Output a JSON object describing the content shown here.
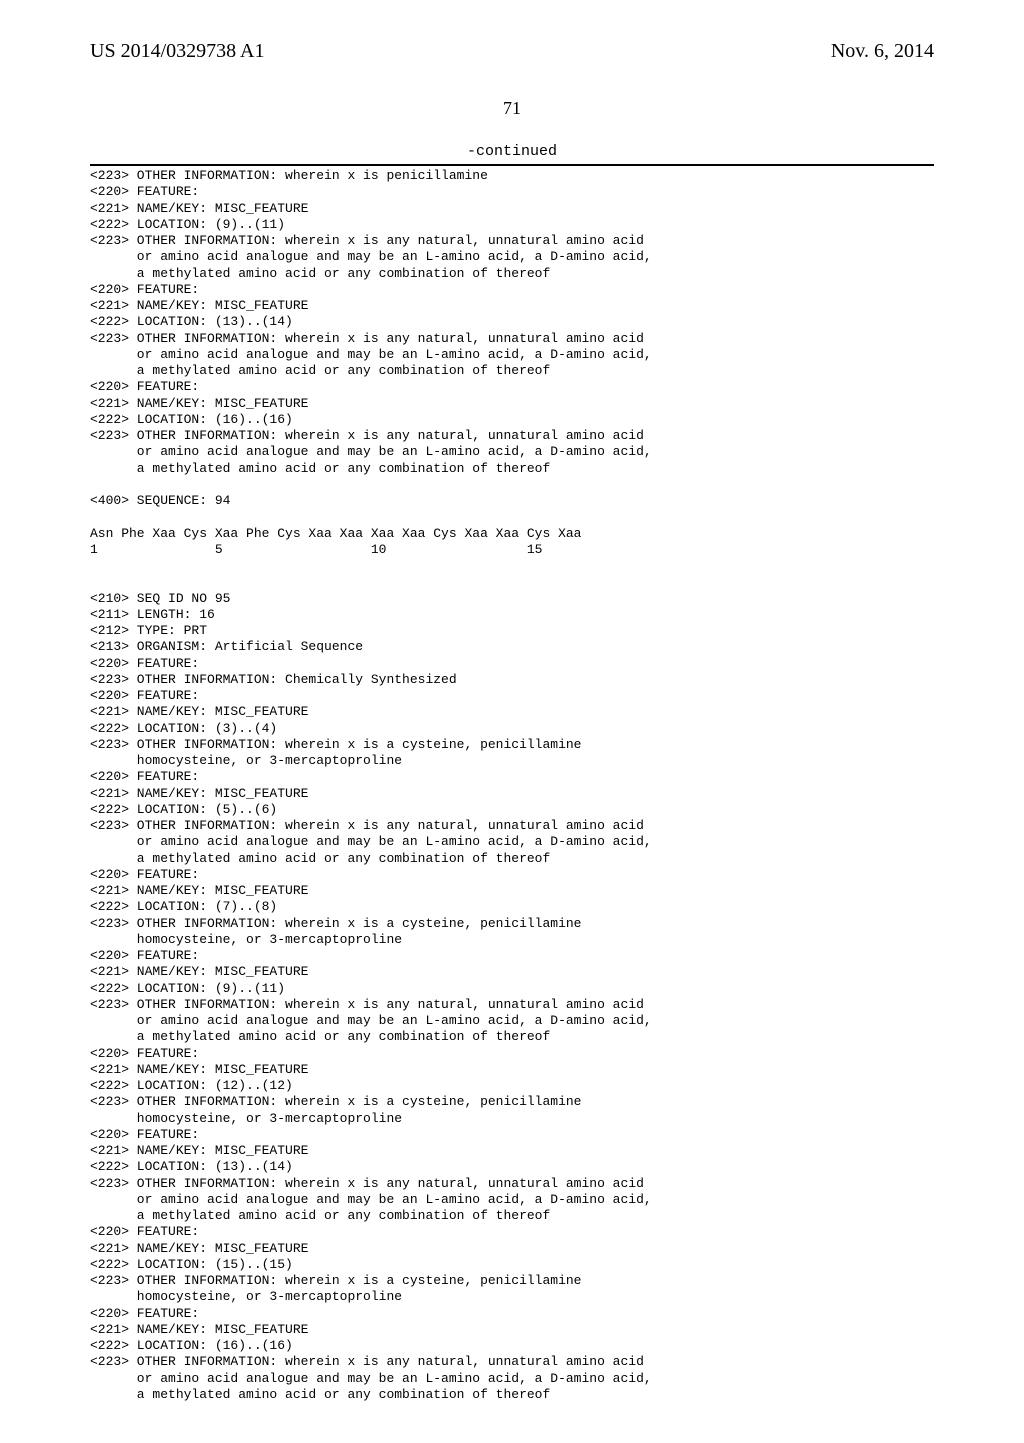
{
  "header": {
    "pub_number": "US 2014/0329738 A1",
    "pub_date": "Nov. 6, 2014",
    "page_number": "71",
    "continued_label": "-continued"
  },
  "listing": "<223> OTHER INFORMATION: wherein x is penicillamine\n<220> FEATURE:\n<221> NAME/KEY: MISC_FEATURE\n<222> LOCATION: (9)..(11)\n<223> OTHER INFORMATION: wherein x is any natural, unnatural amino acid\n      or amino acid analogue and may be an L-amino acid, a D-amino acid,\n      a methylated amino acid or any combination of thereof\n<220> FEATURE:\n<221> NAME/KEY: MISC_FEATURE\n<222> LOCATION: (13)..(14)\n<223> OTHER INFORMATION: wherein x is any natural, unnatural amino acid\n      or amino acid analogue and may be an L-amino acid, a D-amino acid,\n      a methylated amino acid or any combination of thereof\n<220> FEATURE:\n<221> NAME/KEY: MISC_FEATURE\n<222> LOCATION: (16)..(16)\n<223> OTHER INFORMATION: wherein x is any natural, unnatural amino acid\n      or amino acid analogue and may be an L-amino acid, a D-amino acid,\n      a methylated amino acid or any combination of thereof\n\n<400> SEQUENCE: 94\n\nAsn Phe Xaa Cys Xaa Phe Cys Xaa Xaa Xaa Xaa Cys Xaa Xaa Cys Xaa\n1               5                   10                  15\n\n\n<210> SEQ ID NO 95\n<211> LENGTH: 16\n<212> TYPE: PRT\n<213> ORGANISM: Artificial Sequence\n<220> FEATURE:\n<223> OTHER INFORMATION: Chemically Synthesized\n<220> FEATURE:\n<221> NAME/KEY: MISC_FEATURE\n<222> LOCATION: (3)..(4)\n<223> OTHER INFORMATION: wherein x is a cysteine, penicillamine\n      homocysteine, or 3-mercaptoproline\n<220> FEATURE:\n<221> NAME/KEY: MISC_FEATURE\n<222> LOCATION: (5)..(6)\n<223> OTHER INFORMATION: wherein x is any natural, unnatural amino acid\n      or amino acid analogue and may be an L-amino acid, a D-amino acid,\n      a methylated amino acid or any combination of thereof\n<220> FEATURE:\n<221> NAME/KEY: MISC_FEATURE\n<222> LOCATION: (7)..(8)\n<223> OTHER INFORMATION: wherein x is a cysteine, penicillamine\n      homocysteine, or 3-mercaptoproline\n<220> FEATURE:\n<221> NAME/KEY: MISC_FEATURE\n<222> LOCATION: (9)..(11)\n<223> OTHER INFORMATION: wherein x is any natural, unnatural amino acid\n      or amino acid analogue and may be an L-amino acid, a D-amino acid,\n      a methylated amino acid or any combination of thereof\n<220> FEATURE:\n<221> NAME/KEY: MISC_FEATURE\n<222> LOCATION: (12)..(12)\n<223> OTHER INFORMATION: wherein x is a cysteine, penicillamine\n      homocysteine, or 3-mercaptoproline\n<220> FEATURE:\n<221> NAME/KEY: MISC_FEATURE\n<222> LOCATION: (13)..(14)\n<223> OTHER INFORMATION: wherein x is any natural, unnatural amino acid\n      or amino acid analogue and may be an L-amino acid, a D-amino acid,\n      a methylated amino acid or any combination of thereof\n<220> FEATURE:\n<221> NAME/KEY: MISC_FEATURE\n<222> LOCATION: (15)..(15)\n<223> OTHER INFORMATION: wherein x is a cysteine, penicillamine\n      homocysteine, or 3-mercaptoproline\n<220> FEATURE:\n<221> NAME/KEY: MISC_FEATURE\n<222> LOCATION: (16)..(16)\n<223> OTHER INFORMATION: wherein x is any natural, unnatural amino acid\n      or amino acid analogue and may be an L-amino acid, a D-amino acid,\n      a methylated amino acid or any combination of thereof"
}
